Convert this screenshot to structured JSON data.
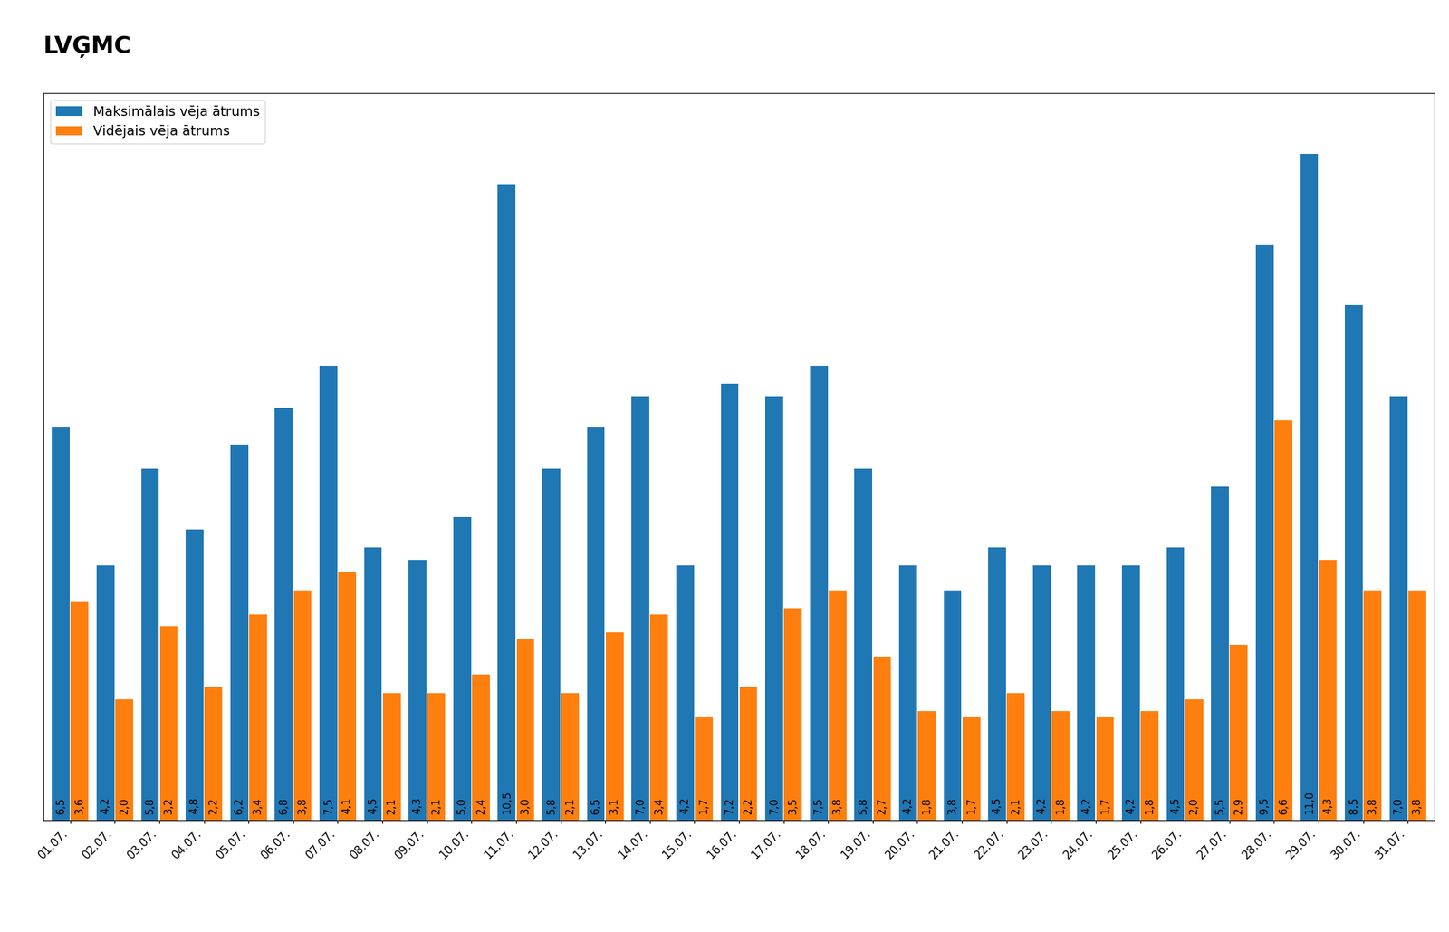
{
  "chart_data": {
    "type": "bar",
    "categories": [
      "01.07.",
      "02.07.",
      "03.07.",
      "04.07.",
      "05.07.",
      "06.07.",
      "07.07.",
      "08.07.",
      "09.07.",
      "10.07.",
      "11.07.",
      "12.07.",
      "13.07.",
      "14.07.",
      "15.07.",
      "16.07.",
      "17.07.",
      "18.07.",
      "19.07.",
      "20.07.",
      "21.07.",
      "22.07.",
      "23.07.",
      "24.07.",
      "25.07.",
      "26.07.",
      "27.07.",
      "28.07.",
      "29.07.",
      "30.07.",
      "31.07."
    ],
    "series": [
      {
        "name": "Maksimālais vēja ātrums",
        "values": [
          6.5,
          4.2,
          5.8,
          4.8,
          6.2,
          6.8,
          7.5,
          4.5,
          4.3,
          5.0,
          10.5,
          5.8,
          6.5,
          7.0,
          4.2,
          7.2,
          7.0,
          7.5,
          5.8,
          4.2,
          3.8,
          4.5,
          4.2,
          4.2,
          4.2,
          4.5,
          5.5,
          9.5,
          11.0,
          8.5,
          7.0
        ],
        "value_labels": [
          "6,5",
          "4,2",
          "5,8",
          "4,8",
          "6,2",
          "6,8",
          "7,5",
          "4,5",
          "4,3",
          "5,0",
          "10,5",
          "5,8",
          "6,5",
          "7,0",
          "4,2",
          "7,2",
          "7,0",
          "7,5",
          "5,8",
          "4,2",
          "3,8",
          "4,5",
          "4,2",
          "4,2",
          "4,2",
          "4,5",
          "5,5",
          "9,5",
          "11,0",
          "8,5",
          "7,0"
        ]
      },
      {
        "name": "Vidējais vēja ātrums",
        "values": [
          3.6,
          2.0,
          3.2,
          2.2,
          3.4,
          3.8,
          4.1,
          2.1,
          2.1,
          2.4,
          3.0,
          2.1,
          3.1,
          3.4,
          1.7,
          2.2,
          3.5,
          3.8,
          2.7,
          1.8,
          1.7,
          2.1,
          1.8,
          1.7,
          1.8,
          2.0,
          2.9,
          6.6,
          4.3,
          3.8,
          3.8
        ],
        "value_labels": [
          "3,6",
          "2,0",
          "3,2",
          "2,2",
          "3,4",
          "3,8",
          "4,1",
          "2,1",
          "2,1",
          "2,4",
          "3,0",
          "2,1",
          "3,1",
          "3,4",
          "1,7",
          "2,2",
          "3,5",
          "3,8",
          "2,7",
          "1,8",
          "1,7",
          "2,1",
          "1,8",
          "1,7",
          "1,8",
          "2,0",
          "2,9",
          "6,6",
          "4,3",
          "3,8",
          "3,8"
        ]
      }
    ],
    "ylim": [
      0,
      12.0
    ],
    "data_labels": true,
    "tick_labels": "x",
    "legend": "upper left",
    "annotations": [
      "LVĢMC"
    ]
  }
}
